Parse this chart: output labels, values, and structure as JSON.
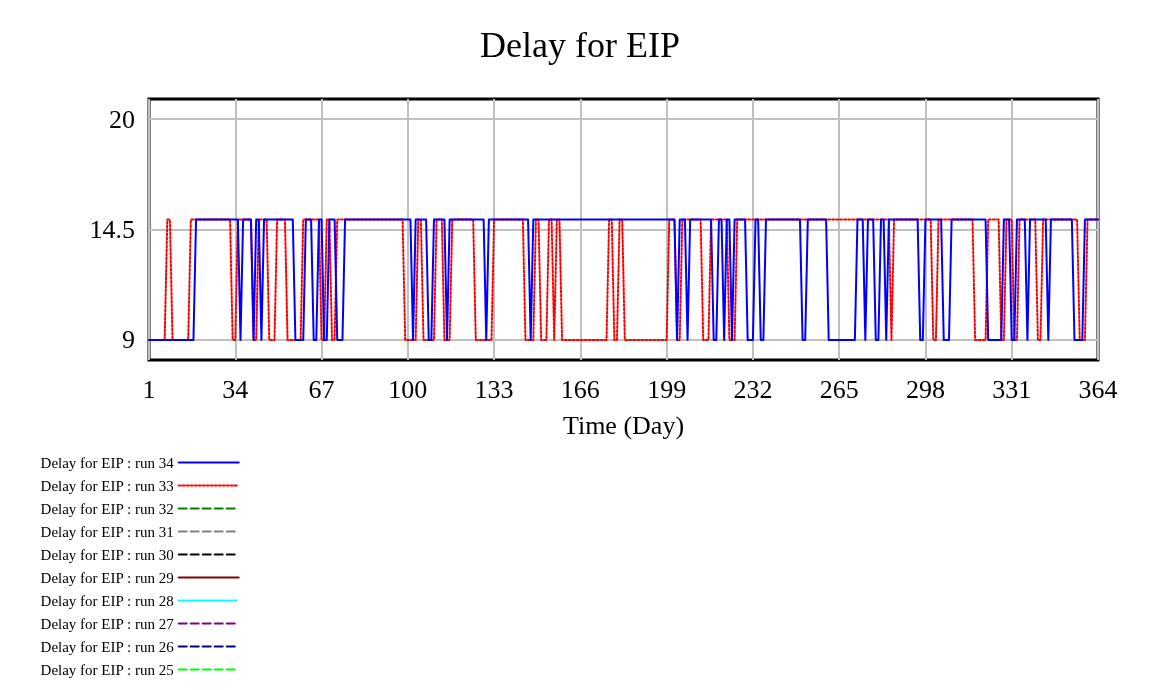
{
  "chart_data": {
    "type": "line",
    "title": "Delay for EIP",
    "xlabel": "Time (Day)",
    "xlim": [
      1,
      364
    ],
    "xticks": [
      1,
      34,
      67,
      100,
      133,
      166,
      199,
      232,
      265,
      298,
      331,
      364
    ],
    "ylim": [
      8,
      21
    ],
    "yticks": [
      9,
      14.5,
      20
    ],
    "grid": true,
    "legend": "bottom",
    "series": [
      {
        "name": "Delay for EIP : run 34",
        "color": "#0000ff",
        "line_style": "solid",
        "x": [
          1,
          18,
          19,
          35,
          36,
          37,
          40,
          41,
          42,
          43,
          44,
          45,
          56,
          57,
          60,
          61,
          63,
          64,
          65,
          66,
          67,
          68,
          69,
          70,
          72,
          73,
          75,
          76,
          101,
          102,
          103,
          107,
          108,
          109,
          110,
          114,
          115,
          116,
          129,
          130,
          131,
          146,
          147,
          148,
          202,
          203,
          204,
          206,
          207,
          208,
          216,
          217,
          218,
          219,
          220,
          221,
          222,
          223,
          224,
          225,
          229,
          230,
          232,
          233,
          234,
          235,
          236,
          237,
          250,
          251,
          252,
          253,
          260,
          261,
          271,
          272,
          274,
          275,
          276,
          278,
          279,
          280,
          281,
          282,
          283,
          284,
          295,
          296,
          297,
          298,
          304,
          305,
          307,
          308,
          321,
          322,
          327,
          328,
          330,
          331,
          332,
          333,
          336,
          337,
          338,
          344,
          345,
          346,
          354,
          355,
          358,
          359,
          364
        ],
        "values": [
          9,
          9,
          15,
          15,
          9,
          15,
          15,
          9,
          15,
          15,
          9,
          15,
          15,
          9,
          9,
          15,
          15,
          9,
          9,
          15,
          15,
          9,
          9,
          15,
          15,
          9,
          9,
          15,
          15,
          9,
          15,
          15,
          9,
          9,
          15,
          15,
          9,
          15,
          15,
          9,
          15,
          15,
          9,
          15,
          15,
          9,
          15,
          15,
          9,
          15,
          15,
          9,
          9,
          15,
          15,
          9,
          15,
          15,
          9,
          15,
          15,
          9,
          9,
          15,
          15,
          9,
          9,
          15,
          15,
          9,
          9,
          15,
          15,
          9,
          9,
          15,
          15,
          9,
          15,
          15,
          9,
          9,
          15,
          15,
          9,
          15,
          15,
          9,
          9,
          15,
          15,
          9,
          9,
          15,
          15,
          9,
          9,
          15,
          15,
          9,
          9,
          15,
          15,
          9,
          15,
          15,
          9,
          15,
          15,
          9,
          9,
          15,
          15
        ]
      },
      {
        "name": "Delay for EIP : run 33",
        "color": "#ff0000",
        "line_style": "dotted",
        "x": [
          1,
          7,
          8,
          9,
          10,
          16,
          17,
          32,
          33,
          34,
          35,
          40,
          41,
          42,
          43,
          46,
          47,
          49,
          50,
          53,
          54,
          59,
          60,
          66,
          67,
          68,
          69,
          70,
          71,
          72,
          73,
          98,
          99,
          103,
          104,
          105,
          106,
          110,
          111,
          113,
          114,
          116,
          117,
          125,
          126,
          132,
          133,
          144,
          145,
          148,
          149,
          150,
          151,
          153,
          154,
          155,
          156,
          157,
          158,
          159,
          176,
          177,
          178,
          179,
          180,
          181,
          182,
          183,
          199,
          200,
          202,
          203,
          204,
          205,
          212,
          213,
          215,
          216,
          222,
          223,
          225,
          226,
          284,
          285,
          286,
          300,
          301,
          302,
          303,
          316,
          317,
          321,
          322,
          326,
          327,
          328,
          329,
          331,
          332,
          333,
          334,
          340,
          341,
          342,
          343,
          356,
          357,
          359,
          360,
          364
        ],
        "values": [
          9,
          9,
          15,
          15,
          9,
          9,
          15,
          15,
          9,
          9,
          15,
          15,
          9,
          9,
          15,
          15,
          9,
          9,
          15,
          15,
          9,
          9,
          15,
          15,
          9,
          9,
          15,
          15,
          9,
          9,
          15,
          15,
          9,
          9,
          15,
          15,
          9,
          9,
          15,
          15,
          9,
          9,
          15,
          15,
          9,
          9,
          15,
          15,
          9,
          9,
          15,
          15,
          9,
          9,
          15,
          15,
          9,
          15,
          15,
          9,
          9,
          15,
          15,
          9,
          9,
          15,
          15,
          9,
          9,
          15,
          15,
          9,
          9,
          15,
          15,
          9,
          9,
          15,
          15,
          9,
          9,
          15,
          15,
          9,
          15,
          15,
          9,
          9,
          15,
          15,
          9,
          9,
          15,
          15,
          9,
          9,
          15,
          15,
          9,
          9,
          15,
          15,
          9,
          9,
          15,
          15,
          9,
          9,
          15,
          15
        ]
      },
      {
        "name": "Delay for EIP : run 32",
        "color": "#008000",
        "line_style": "dashed"
      },
      {
        "name": "Delay for EIP : run 31",
        "color": "#808080",
        "line_style": "dashed"
      },
      {
        "name": "Delay for EIP : run 30",
        "color": "#000000",
        "line_style": "dashed"
      },
      {
        "name": "Delay for EIP : run 29",
        "color": "#800000",
        "line_style": "solid"
      },
      {
        "name": "Delay for EIP : run 28",
        "color": "#00ffff",
        "line_style": "dotted"
      },
      {
        "name": "Delay for EIP : run 27",
        "color": "#800080",
        "line_style": "dashed"
      },
      {
        "name": "Delay for EIP : run 26",
        "color": "#000080",
        "line_style": "dashed"
      },
      {
        "name": "Delay for EIP : run 25",
        "color": "#00ff00",
        "line_style": "dashed"
      }
    ]
  }
}
